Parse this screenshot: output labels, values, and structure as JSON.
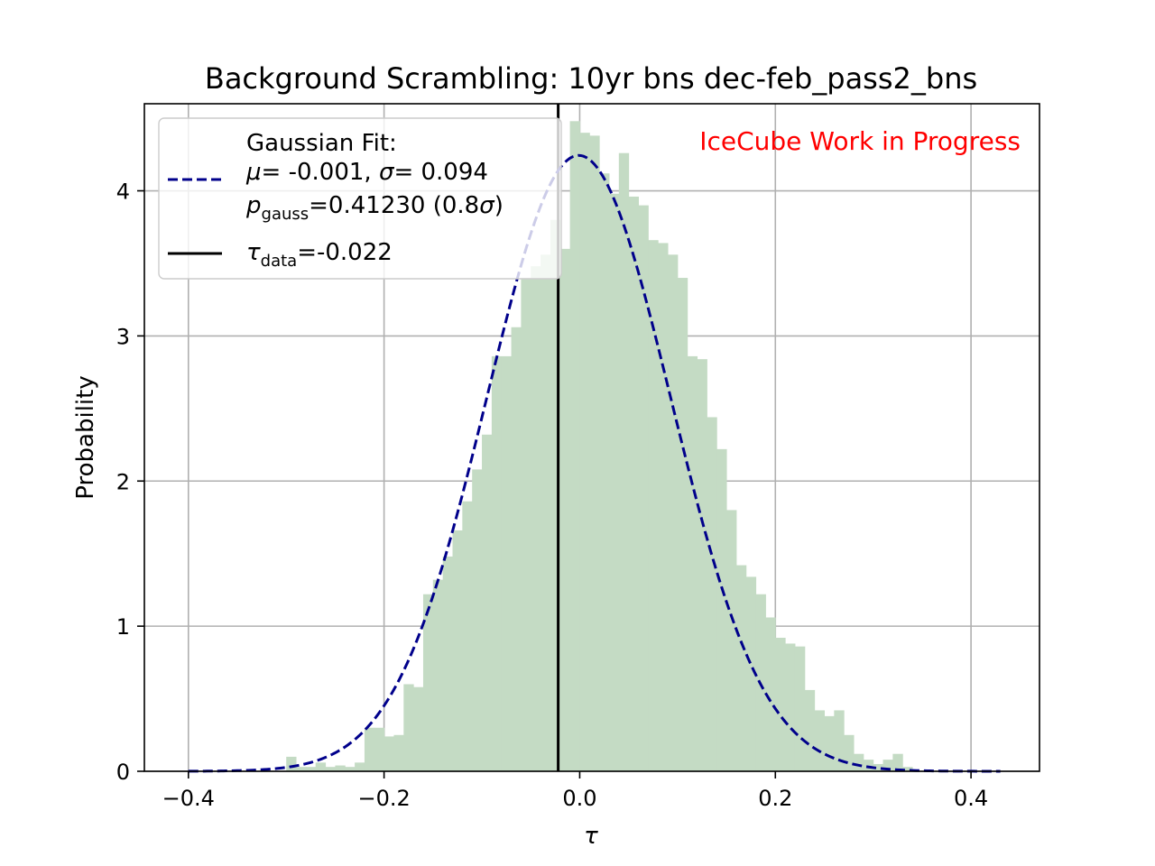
{
  "chart_data": {
    "type": "bar",
    "title": "Background Scrambling: 10yr bns dec-feb_pass2_bns",
    "xlabel": "τ",
    "ylabel": "Probability",
    "xlim": [
      -0.445,
      0.47
    ],
    "ylim": [
      0,
      4.6
    ],
    "grid": true,
    "xticks": [
      -0.4,
      -0.2,
      0.0,
      0.2,
      0.4
    ],
    "xtick_labels": [
      "−0.4",
      "−0.2",
      "0.0",
      "0.2",
      "0.4"
    ],
    "yticks": [
      0,
      1,
      2,
      3,
      4
    ],
    "ytick_labels": [
      "0",
      "1",
      "2",
      "3",
      "4"
    ],
    "watermark": "IceCube Work in Progress",
    "watermark_color": "#ff0000",
    "histogram": {
      "color": "#c4dbc4",
      "bin_start": -0.3,
      "bin_width": 0.01,
      "values": [
        0.1,
        0.03,
        0.03,
        0.06,
        0.03,
        0.04,
        0.03,
        0.06,
        0.3,
        0.3,
        0.24,
        0.25,
        0.6,
        0.58,
        1.22,
        1.32,
        1.48,
        1.66,
        1.86,
        2.08,
        2.32,
        2.86,
        2.86,
        3.06,
        3.4,
        3.48,
        3.56,
        3.8,
        3.6,
        4.48,
        4.4,
        4.38,
        4.12,
        3.98,
        4.26,
        3.96,
        3.9,
        3.66,
        3.64,
        3.56,
        3.4,
        2.86,
        2.84,
        2.44,
        2.22,
        1.8,
        1.42,
        1.34,
        1.22,
        1.06,
        0.92,
        0.88,
        0.86,
        0.56,
        0.42,
        0.38,
        0.42,
        0.25,
        0.12,
        0.08,
        0.05,
        0.08,
        0.12,
        0.03
      ]
    },
    "fit": {
      "type": "gaussian",
      "mu": -0.001,
      "sigma": 0.094,
      "x_range": [
        -0.4,
        0.43
      ],
      "color": "#00008b",
      "style": "dashed"
    },
    "tau_data": {
      "value": -0.022,
      "color": "#000000"
    },
    "legend": {
      "placement": "upper left",
      "title_line": "Gaussian Fit:",
      "fit_params": "= -0.001, ",
      "fit_mu_symbol": "μ",
      "fit_sigma_symbol": "σ",
      "fit_sigma_value": "= 0.094",
      "pgauss_symbol": "p",
      "pgauss_sub": "gauss",
      "pgauss_value": "=0.41230 (0.8",
      "pgauss_sigma": "σ",
      "pgauss_close": ")",
      "tau_symbol": "τ",
      "tau_sub": "data",
      "tau_value": "=-0.022"
    }
  }
}
